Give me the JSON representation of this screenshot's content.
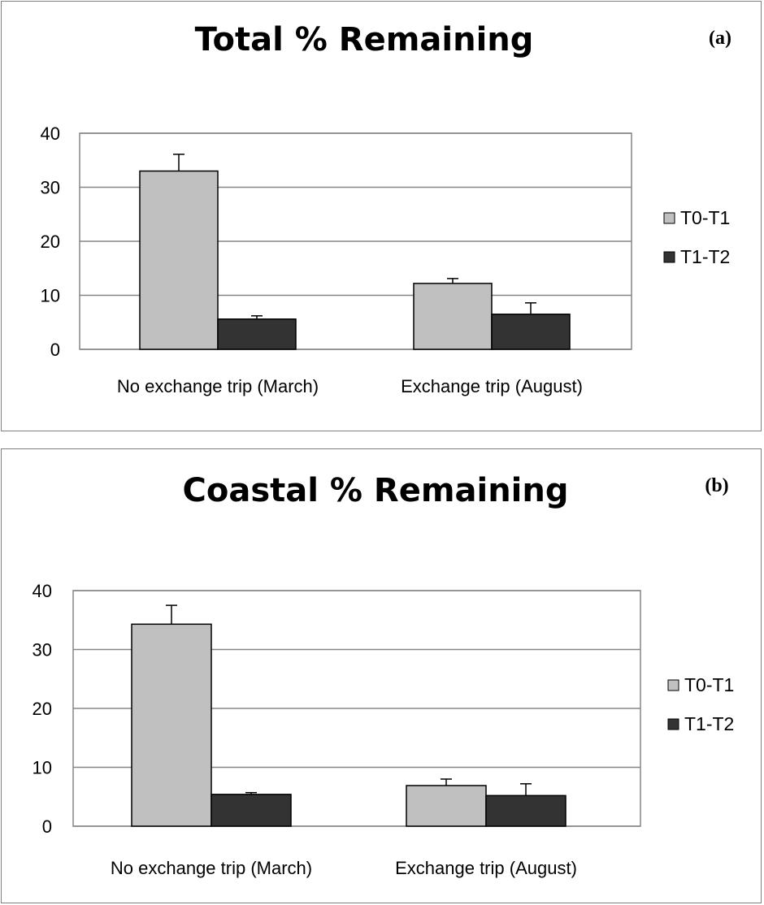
{
  "chart_data": [
    {
      "type": "bar",
      "title": "Total % Remaining",
      "panel_label": "(a)",
      "categories": [
        "No exchange trip (March)",
        "Exchange trip (August)"
      ],
      "series": [
        {
          "name": "T0-T1",
          "values": [
            33,
            12.2
          ],
          "errors": [
            3.1,
            0.9
          ],
          "color": "#c0c0c0"
        },
        {
          "name": "T1-T2",
          "values": [
            5.6,
            6.5
          ],
          "errors": [
            0.6,
            2.1
          ],
          "color": "#333333"
        }
      ],
      "yticks": [
        0,
        10,
        20,
        30,
        40
      ],
      "ylim": [
        0,
        40
      ],
      "grid": true,
      "legend": "right"
    },
    {
      "type": "bar",
      "title": "Coastal % Remaining",
      "panel_label": "(b)",
      "categories": [
        "No exchange trip (March)",
        "Exchange trip (August)"
      ],
      "series": [
        {
          "name": "T0-T1",
          "values": [
            34.3,
            6.9
          ],
          "errors": [
            3.2,
            1.1
          ],
          "color": "#c0c0c0"
        },
        {
          "name": "T1-T2",
          "values": [
            5.4,
            5.2
          ],
          "errors": [
            0.3,
            2.0
          ],
          "color": "#333333"
        }
      ],
      "yticks": [
        0,
        10,
        20,
        30,
        40
      ],
      "ylim": [
        0,
        40
      ],
      "grid": true,
      "legend": "right"
    }
  ]
}
